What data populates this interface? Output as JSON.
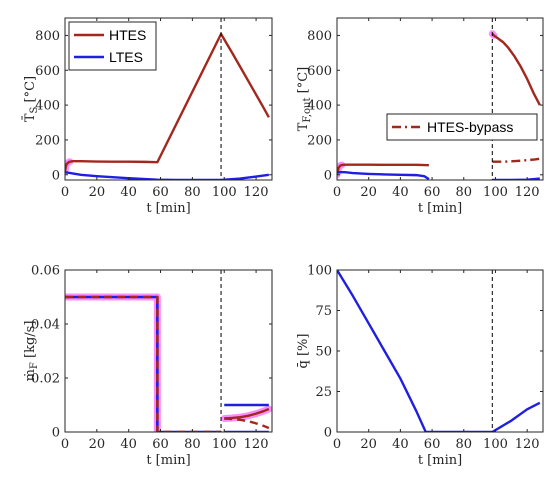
{
  "colors": {
    "htes": "#A2281E",
    "ltes": "#1F1FE0",
    "highlight": "#FF66FF",
    "axis": "#262626",
    "marker": "#000000"
  },
  "chart_data": [
    {
      "type": "line",
      "ylabel": "T̄_S [°C]",
      "xlabel": "t [min]",
      "xlim": [
        0,
        130
      ],
      "ylim": [
        -30,
        900
      ],
      "xticks": [
        0,
        20,
        40,
        60,
        80,
        100,
        120
      ],
      "yticks": [
        0,
        200,
        400,
        600,
        800
      ],
      "marker_x": 98,
      "legend": {
        "position": "top-left"
      },
      "series": [
        {
          "name": "HTES",
          "color_key": "htes",
          "style": "solid",
          "highlight": [
            [
              0,
              3
            ]
          ],
          "x": [
            0,
            0.5,
            1,
            2,
            3,
            5,
            10,
            20,
            30,
            40,
            50,
            58,
            98,
            105,
            110,
            115,
            120,
            125,
            128
          ],
          "y": [
            20,
            45,
            60,
            70,
            75,
            78,
            78,
            76,
            75,
            75,
            74,
            72,
            808,
            700,
            620,
            540,
            460,
            380,
            330
          ]
        },
        {
          "name": "LTES",
          "color_key": "ltes",
          "style": "solid",
          "x": [
            0,
            10,
            20,
            30,
            40,
            58,
            70,
            80,
            98,
            110,
            120,
            128
          ],
          "y": [
            15,
            0,
            -8,
            -14,
            -20,
            -28,
            -30,
            -30,
            -30,
            -22,
            -10,
            0
          ]
        }
      ]
    },
    {
      "type": "line",
      "ylabel": "T_F,out [°C]",
      "xlabel": "t [min]",
      "xlim": [
        0,
        130
      ],
      "ylim": [
        -30,
        900
      ],
      "xticks": [
        0,
        20,
        40,
        60,
        80,
        100,
        120
      ],
      "yticks": [
        0,
        200,
        400,
        600,
        800
      ],
      "marker_x": 98,
      "legend": {
        "position": "bottom-right"
      },
      "series": [
        {
          "name": "",
          "color_key": "htes",
          "style": "solid",
          "highlight": [
            [
              0,
              3
            ],
            [
              98,
              101
            ]
          ],
          "segments": [
            {
              "x": [
                0,
                1,
                2,
                3,
                5,
                10,
                20,
                30,
                40,
                50,
                58
              ],
              "y": [
                0,
                40,
                52,
                56,
                58,
                58,
                58,
                57,
                57,
                57,
                55
              ]
            },
            {
              "x": [
                98,
                99,
                102,
                105,
                108,
                112,
                116,
                120,
                124,
                128
              ],
              "y": [
                810,
                800,
                780,
                760,
                730,
                680,
                620,
                550,
                470,
                400
              ]
            }
          ]
        },
        {
          "name": "HTES-bypass",
          "color_key": "htes",
          "style": "dashdot",
          "segments": [
            {
              "x": [
                98,
                105,
                110,
                115,
                120,
                125,
                128
              ],
              "y": [
                75,
                75,
                77,
                80,
                84,
                88,
                92
              ]
            }
          ]
        },
        {
          "name": "",
          "color_key": "ltes",
          "style": "solid",
          "segments": [
            {
              "x": [
                0,
                5,
                10,
                20,
                30,
                40,
                50,
                55,
                58
              ],
              "y": [
                15,
                15,
                10,
                5,
                2,
                0,
                -2,
                -8,
                -25
              ]
            },
            {
              "x": [
                98,
                110,
                120,
                128
              ],
              "y": [
                -30,
                -30,
                -28,
                -22
              ]
            }
          ]
        }
      ]
    },
    {
      "type": "line",
      "ylabel": "ṁ_F [kg/s]",
      "xlabel": "t [min]",
      "xlim": [
        0,
        130
      ],
      "ylim": [
        0,
        0.06
      ],
      "xticks": [
        0,
        20,
        40,
        60,
        80,
        100,
        120
      ],
      "yticks": [
        0,
        0.02,
        0.04,
        0.06
      ],
      "yticklabels": [
        "0",
        "0.02",
        "0.04",
        "0.06"
      ],
      "marker_x": 98,
      "series": [
        {
          "name": "",
          "color_key": "ltes",
          "style": "solid",
          "width": 2.6,
          "highlight": [
            [
              0,
              58
            ]
          ],
          "segments": [
            {
              "x": [
                0,
                58,
                58,
                98
              ],
              "y": [
                0.05,
                0.05,
                0,
                0
              ]
            },
            {
              "x": [
                100,
                128
              ],
              "y": [
                0.01,
                0.01
              ]
            }
          ]
        },
        {
          "name": "",
          "color_key": "htes",
          "style": "dashed",
          "width": 2.6,
          "segments": [
            {
              "x": [
                0,
                58,
                58,
                98
              ],
              "y": [
                0.05,
                0.05,
                0,
                0
              ]
            }
          ]
        },
        {
          "name": "",
          "color_key": "htes",
          "style": "solid",
          "highlight": [
            [
              100,
              128
            ]
          ],
          "segments": [
            {
              "x": [
                100,
                105,
                110,
                115,
                120,
                125,
                128
              ],
              "y": [
                0.005,
                0.0052,
                0.0055,
                0.006,
                0.0068,
                0.0078,
                0.0085
              ]
            }
          ]
        },
        {
          "name": "",
          "color_key": "htes",
          "style": "dashed",
          "segments": [
            {
              "x": [
                100,
                105,
                110,
                115,
                120,
                125,
                128
              ],
              "y": [
                0.005,
                0.0048,
                0.0045,
                0.004,
                0.0032,
                0.0022,
                0.0015
              ]
            }
          ]
        },
        {
          "name": "",
          "color_key": "ltes",
          "style": "solid",
          "segments": [
            {
              "x": [
                100,
                128
              ],
              "y": [
                0.0,
                0.0
              ]
            }
          ]
        }
      ]
    },
    {
      "type": "line",
      "ylabel": "q̄ [%]",
      "xlabel": "t [min]",
      "xlim": [
        0,
        130
      ],
      "ylim": [
        0,
        100
      ],
      "xticks": [
        0,
        20,
        40,
        60,
        80,
        100,
        120
      ],
      "yticks": [
        0,
        25,
        50,
        75,
        100
      ],
      "marker_x": 98,
      "series": [
        {
          "name": "",
          "color_key": "ltes",
          "style": "solid",
          "x": [
            0,
            10,
            20,
            30,
            40,
            50,
            56,
            60,
            80,
            98,
            110,
            120,
            128
          ],
          "y": [
            100,
            84,
            67,
            50,
            33,
            13,
            0,
            0,
            0,
            0,
            7,
            14,
            18
          ]
        }
      ]
    }
  ]
}
